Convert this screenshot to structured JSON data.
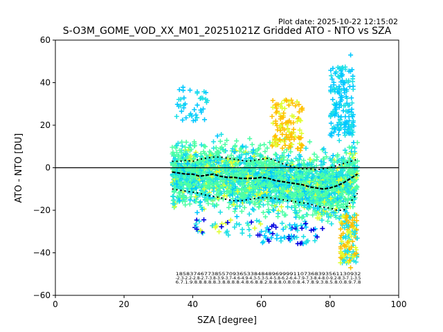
{
  "plot_date": "Plot date: 2025-10-22 12:15:02",
  "chart_data": {
    "type": "scatter",
    "title": "S-O3M_GOME_VOD_XX_M01_20251021Z Gridded ATO - NTO vs SZA",
    "xlabel": "SZA [degree]",
    "ylabel": "ATO - NTO [DU]",
    "xlim": [
      0,
      100
    ],
    "ylim": [
      -60,
      60
    ],
    "xticks": [
      "0",
      "20",
      "40",
      "60",
      "80",
      "100"
    ],
    "yticks": [
      "60",
      "40",
      "20",
      "0",
      "−20",
      "−40",
      "−60"
    ],
    "zero_line": 0,
    "scatter_extent": {
      "sza_range": [
        34,
        88
      ],
      "core_band_du": [
        -22,
        22
      ],
      "outlier_max_du": 53,
      "outlier_min_du": -47
    },
    "colors": {
      "core": "#4dffa6",
      "cyan": "#1ee0e6",
      "lightblue": "#00c8ff",
      "yellow": "#e0ff30",
      "orange": "#ffc000",
      "blue": "#0000e0",
      "markers": "#000000"
    },
    "mean_curve": {
      "x": [
        34,
        36,
        38,
        40,
        42,
        44,
        46,
        48,
        50,
        52,
        54,
        56,
        58,
        60,
        62,
        64,
        66,
        68,
        70,
        72,
        74,
        76,
        78,
        80,
        82,
        84,
        86,
        87,
        88
      ],
      "y": [
        -2,
        -2.5,
        -3,
        -3,
        -4,
        -3.5,
        -3,
        -4,
        -4.5,
        -4.5,
        -5,
        -5,
        -5,
        -4.5,
        -5,
        -6,
        -6.5,
        -7,
        -7.5,
        -8,
        -9,
        -9.5,
        -10,
        -9.5,
        -8.5,
        -7,
        -5,
        -4,
        -3
      ]
    },
    "upper_curve": {
      "x": [
        34,
        36,
        38,
        40,
        42,
        44,
        46,
        48,
        50,
        52,
        54,
        56,
        58,
        60,
        62,
        64,
        66,
        68,
        70,
        72,
        74,
        76,
        78,
        80,
        82,
        84,
        86,
        88
      ],
      "y": [
        3,
        3,
        3.5,
        3,
        4,
        4.5,
        5,
        5,
        4.5,
        4,
        3.5,
        3,
        3.5,
        4,
        4.5,
        3.5,
        2,
        1,
        0,
        -0.5,
        -0.5,
        -1,
        -0.5,
        0,
        1,
        2,
        3,
        4
      ]
    },
    "lower_curve": {
      "x": [
        34,
        36,
        38,
        40,
        42,
        44,
        46,
        48,
        50,
        52,
        54,
        56,
        58,
        60,
        62,
        64,
        66,
        68,
        70,
        72,
        74,
        76,
        78,
        80,
        82,
        84,
        86,
        88
      ],
      "y": [
        -10,
        -10.5,
        -11,
        -11.5,
        -12,
        -13,
        -13.5,
        -14,
        -15,
        -15.5,
        -15.5,
        -15,
        -14.5,
        -14,
        -14,
        -14.5,
        -15,
        -15.5,
        -16,
        -16.5,
        -17,
        -18,
        -18.5,
        -19,
        -20,
        -20,
        -16,
        -12
      ]
    },
    "stats_rows": [
      {
        "y": -50.5,
        "text": "1858374677385570936533848489699991107368393561130932"
      },
      {
        "y": -52.5,
        "text": "-2.3-2.2-2.8-2.7-3.8-3.9-3.7-4.6-4.9-4.3-5.3-5.4-5.8-6.2-6.4-7.9-7.3-8.4-8.0-9.2-8.3-7.1-3.5"
      },
      {
        "y": -54.5,
        "text": "6.7.1.9.8.8.8.8.8.3.8.8.8.8.4.8.6.8.8.2.8.8.8.0.8.0.8.4.7.8.9.3.8.5.8.0.8.9.7.8"
      }
    ]
  }
}
